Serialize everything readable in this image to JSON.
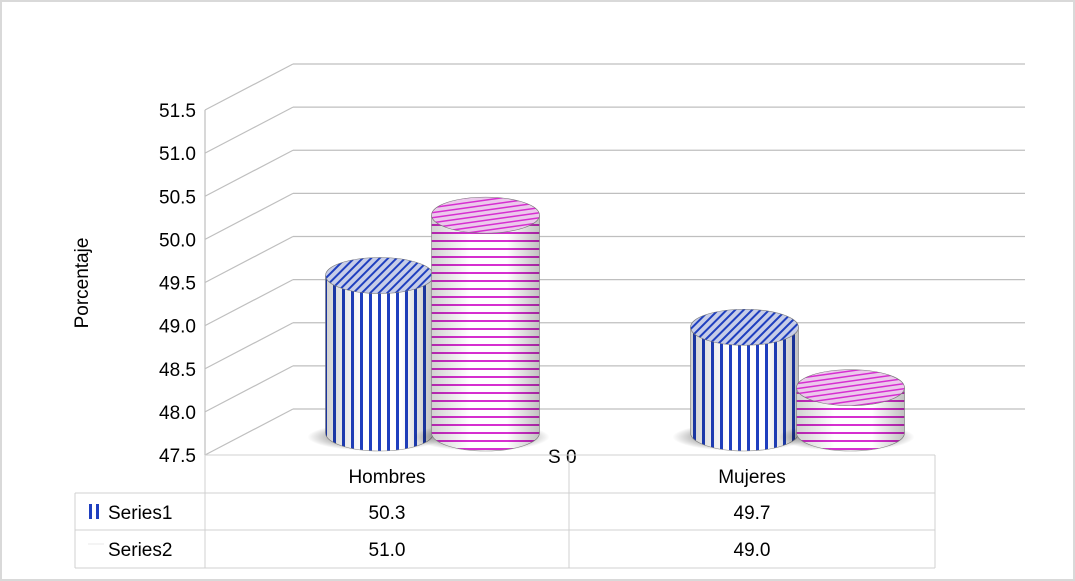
{
  "chart_data": {
    "type": "bar",
    "style": "3d-cylinder",
    "categories": [
      "Hombres",
      "Mujeres"
    ],
    "series": [
      {
        "name": "Series1",
        "values": [
          50.3,
          49.7
        ],
        "color": "#1f3fbf",
        "pattern": "vertical-stripes"
      },
      {
        "name": "Series2",
        "values": [
          51.0,
          49.0
        ],
        "color": "#d62fd0",
        "pattern": "horizontal-stripes"
      }
    ],
    "ylabel": "Porcentaje",
    "ylim": [
      47.5,
      51.5
    ],
    "yticks": [
      "47.5",
      "48.0",
      "48.5",
      "49.0",
      "49.5",
      "50.0",
      "50.5",
      "51.0",
      "51.5"
    ],
    "xlabel_fragment": "S   0",
    "data_table": {
      "headers": [
        "Hombres",
        "Mujeres"
      ],
      "rows": [
        {
          "label": "Series1",
          "values": [
            "50.3",
            "49.7"
          ]
        },
        {
          "label": "Series2",
          "values": [
            "51.0",
            "49.0"
          ]
        }
      ]
    },
    "grid": true
  }
}
